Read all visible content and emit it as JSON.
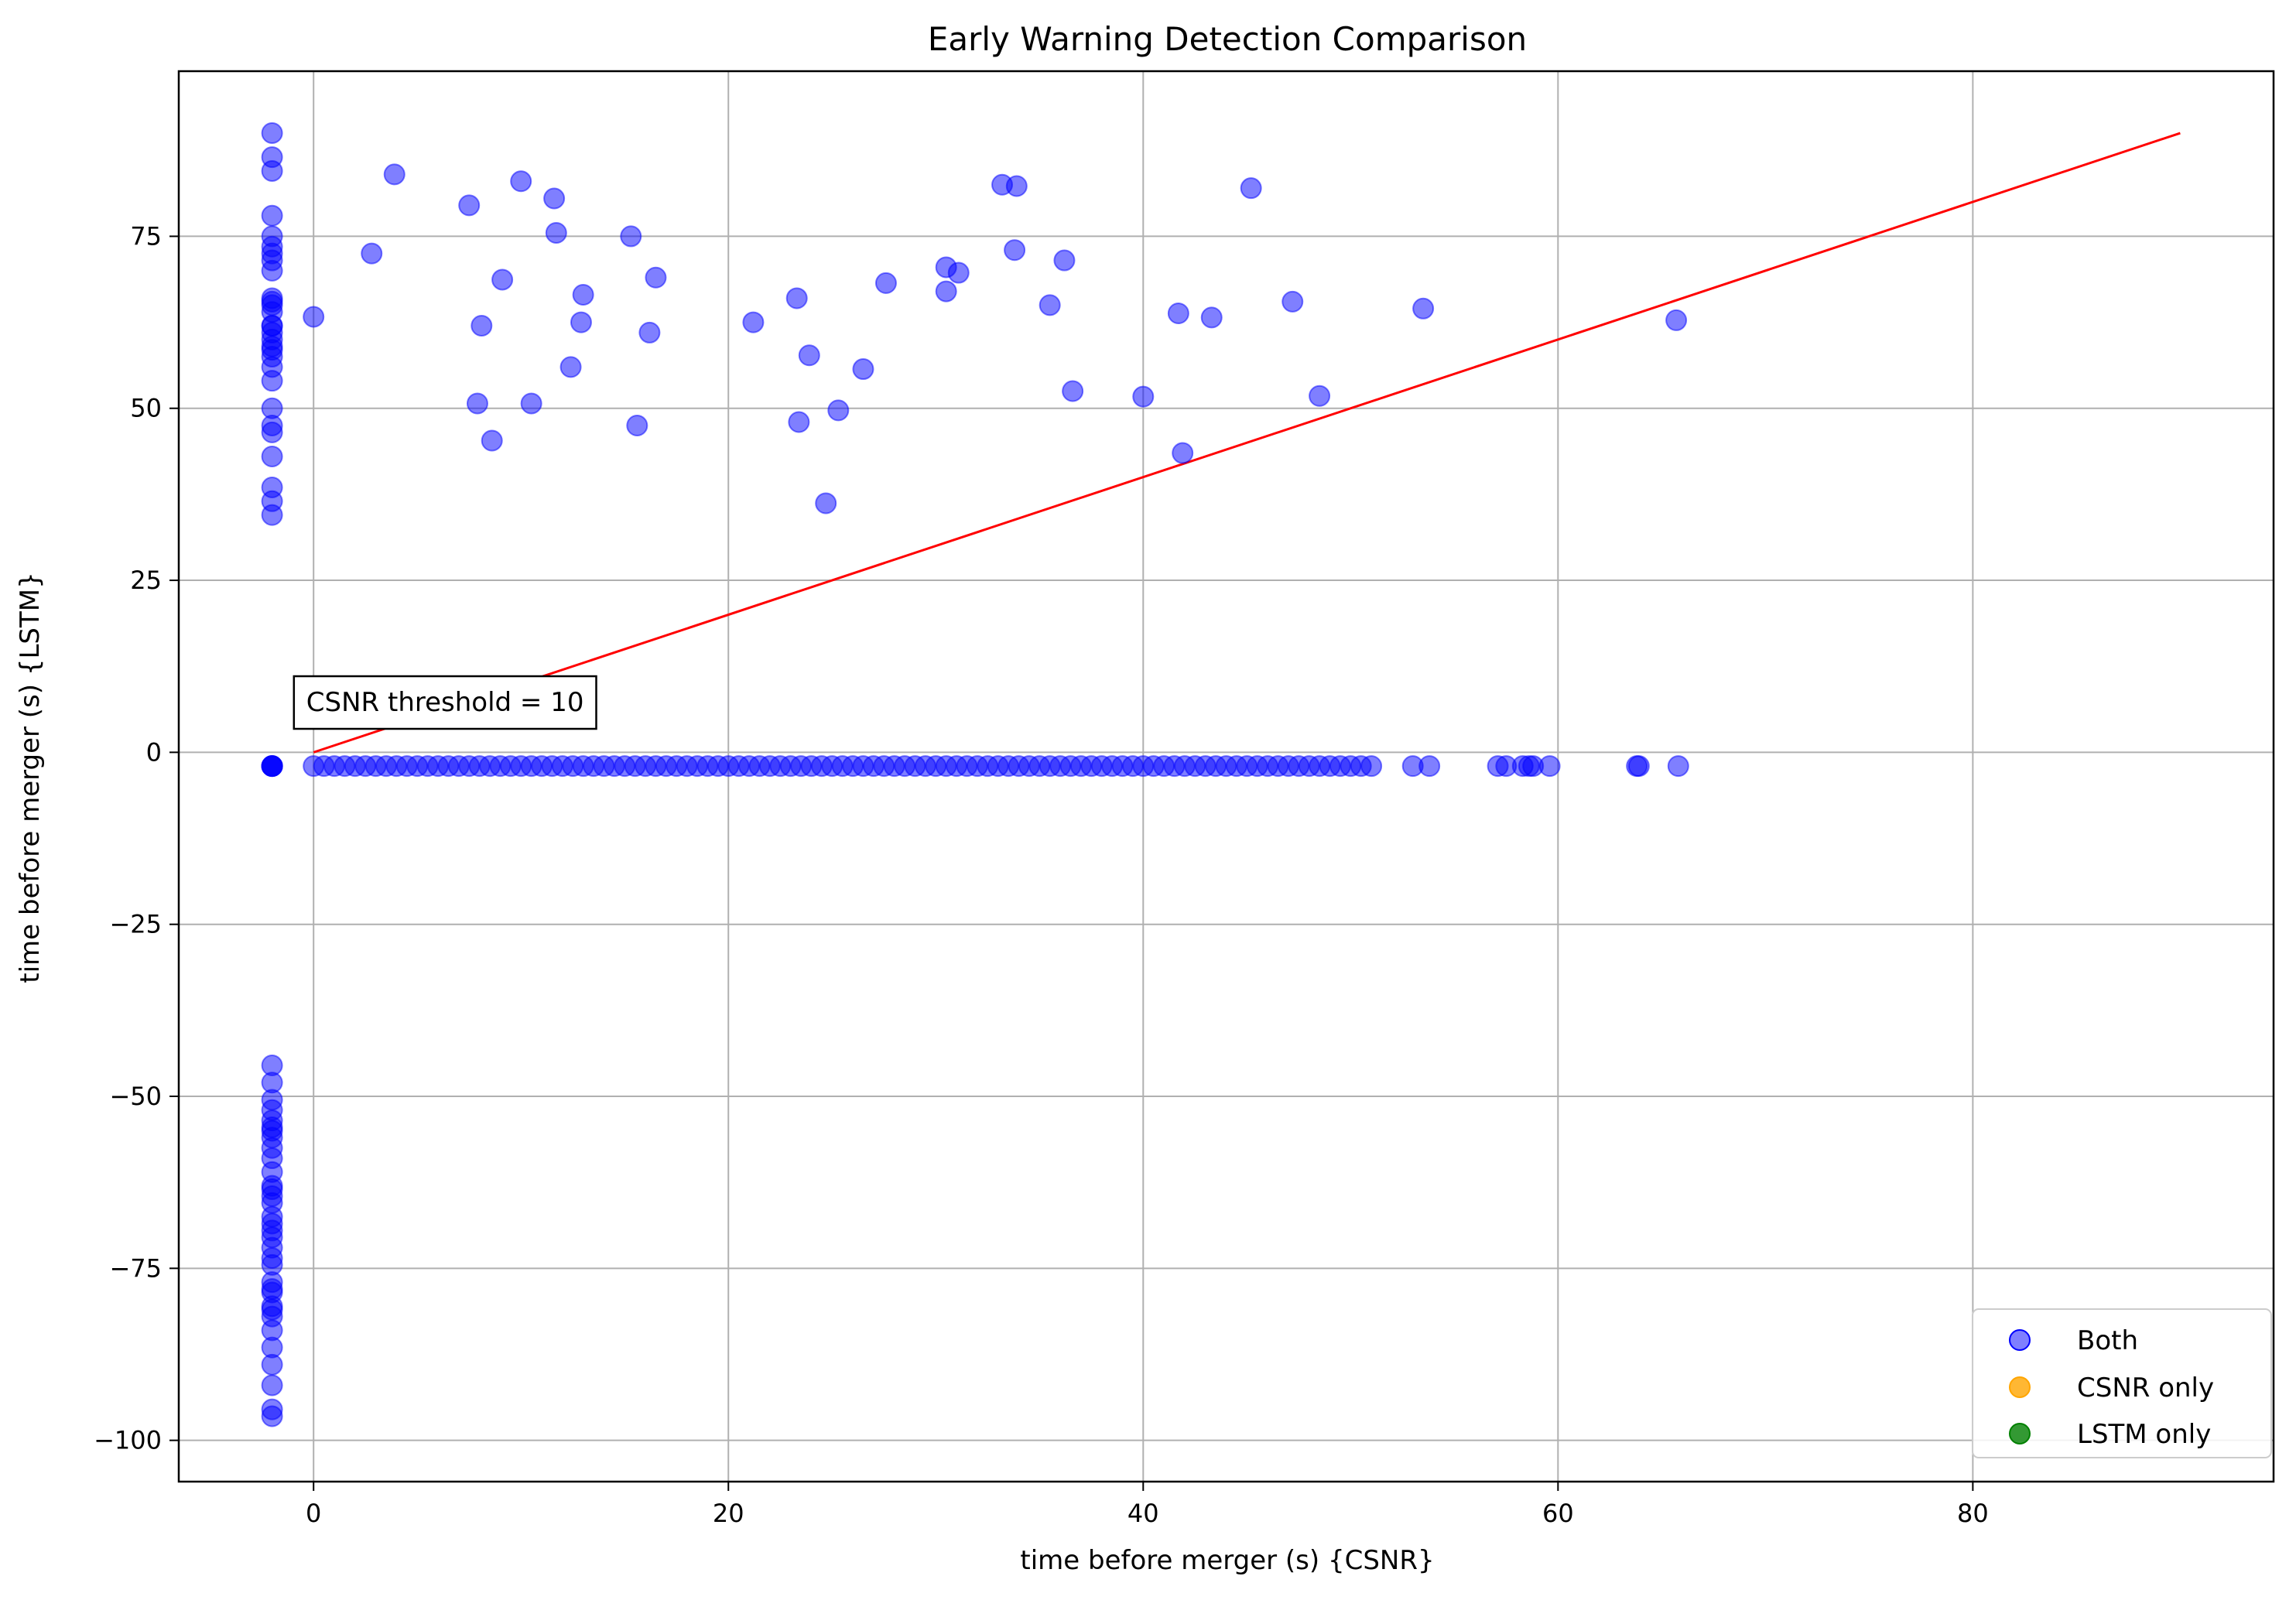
{
  "chart_data": {
    "type": "scatter",
    "title": "Early Warning Detection Comparison",
    "xlabel": "time before merger (s) {CSNR}",
    "ylabel": "time before merger (s) {LSTM}",
    "xlim": [
      -6.5,
      94.5
    ],
    "ylim": [
      -106,
      99
    ],
    "xticks": [
      0,
      20,
      40,
      60,
      80
    ],
    "yticks": [
      -100,
      -75,
      -50,
      -25,
      0,
      25,
      50,
      75
    ],
    "grid": true,
    "legend_position": "bottom-right",
    "annotation": {
      "text": "CSNR threshold = 10",
      "x": -0.5,
      "y": 6
    },
    "reference_line": {
      "x": [
        0,
        90
      ],
      "y": [
        0,
        90
      ],
      "color": "#ff0000"
    },
    "series": [
      {
        "name": "Both",
        "color": "#0000ff",
        "x": [
          -2,
          -2,
          -2,
          -2,
          -2,
          -2,
          -2,
          -2,
          -2,
          -2,
          -2,
          -2,
          -2,
          -2,
          -2,
          -2,
          -2,
          -2,
          -2,
          -2,
          -2,
          -2,
          -2,
          -2,
          -2,
          -2,
          -2,
          -2,
          -2,
          -2,
          -2,
          -2,
          -2,
          -2,
          -2,
          -2,
          -2,
          -2,
          -2,
          -2,
          -2,
          -2,
          -2,
          -2,
          -2,
          -2,
          -2,
          -2,
          -2,
          -2,
          -2,
          -2,
          -2,
          -2,
          -2,
          -2,
          -2,
          -2,
          -2,
          -2,
          -2,
          -2,
          -2,
          -2,
          -2,
          -2,
          -2,
          -2,
          0,
          2.8,
          3.9,
          7.5,
          8.1,
          9.1,
          10,
          11.6,
          11.7,
          12.9,
          13,
          15.3,
          16.5,
          16.2,
          7.9,
          8.6,
          10.5,
          12.4,
          15.6,
          21.2,
          23.3,
          23.9,
          23.4,
          25.3,
          26.5,
          27.6,
          30.5,
          31.1,
          30.5,
          33.2,
          33.9,
          33.8,
          35.5,
          36.2,
          36.6,
          40,
          41.7,
          41.9,
          43.3,
          45.2,
          47.2,
          48.5,
          53.5,
          65.7,
          24.7,
          0,
          0.5,
          1,
          1.5,
          2,
          2.5,
          3,
          3.5,
          4,
          4.5,
          5,
          5.5,
          6,
          6.5,
          7,
          7.5,
          8,
          8.5,
          9,
          9.5,
          10,
          10.5,
          11,
          11.5,
          12,
          12.5,
          13,
          13.5,
          14,
          14.5,
          15,
          15.5,
          16,
          16.5,
          17,
          17.5,
          18,
          18.5,
          19,
          19.5,
          20,
          20.5,
          21,
          21.5,
          22,
          22.5,
          23,
          23.5,
          24,
          24.5,
          25,
          25.5,
          26,
          26.5,
          27,
          27.5,
          28,
          28.5,
          29,
          29.5,
          30,
          30.5,
          31,
          31.5,
          32,
          32.5,
          33,
          33.5,
          34,
          34.5,
          35,
          35.5,
          36,
          36.5,
          37,
          37.5,
          38,
          38.5,
          39,
          39.5,
          40,
          40.5,
          41,
          41.5,
          42,
          42.5,
          43,
          43.5,
          44,
          44.5,
          45,
          45.5,
          46,
          46.5,
          47,
          47.5,
          48,
          48.5,
          49,
          49.5,
          50,
          50.5,
          51,
          53,
          53.8,
          57.1,
          57.5,
          58.3,
          58.6,
          58.8,
          59.6,
          63.8,
          63.9,
          65.8
        ],
        "y": [
          90,
          86.5,
          84.5,
          78,
          75,
          73.5,
          72.5,
          71.5,
          70,
          66,
          65,
          64,
          62,
          60,
          58.5,
          57.5,
          56,
          54,
          50,
          47.5,
          46.5,
          43,
          38.5,
          36.5,
          34.5,
          -2,
          -2,
          -2,
          -2,
          -2,
          -45.5,
          -50.5,
          -52,
          -53.5,
          -54.5,
          -56,
          -57.5,
          -59,
          -61,
          -63,
          -64.5,
          -65.5,
          -67.5,
          -68.5,
          -70.5,
          -72,
          -73.5,
          -74.5,
          -77,
          -78,
          -78.5,
          -80.5,
          -81,
          -82,
          -84,
          -86.5,
          -89,
          -92,
          -95.5,
          -96.5,
          -69.5,
          -63.5,
          -55,
          -48,
          59,
          61,
          62,
          65.5,
          63.3,
          72.5,
          84,
          79.5,
          62,
          68.7,
          83,
          80.5,
          75.5,
          62.5,
          66.5,
          75,
          69,
          61,
          50.7,
          45.3,
          50.7,
          56,
          47.5,
          62.5,
          66,
          57.7,
          48,
          49.7,
          55.7,
          68.2,
          67,
          69.7,
          70.5,
          82.5,
          82.3,
          73,
          65,
          71.5,
          52.5,
          51.7,
          63.8,
          43.5,
          63.2,
          82,
          65.5,
          51.8,
          64.5,
          62.8,
          36.2,
          -2,
          -2,
          -2,
          -2,
          -2,
          -2,
          -2,
          -2,
          -2,
          -2,
          -2,
          -2,
          -2,
          -2,
          -2,
          -2,
          -2,
          -2,
          -2,
          -2,
          -2,
          -2,
          -2,
          -2,
          -2,
          -2,
          -2,
          -2,
          -2,
          -2,
          -2,
          -2,
          -2,
          -2,
          -2,
          -2,
          -2,
          -2,
          -2,
          -2,
          -2,
          -2,
          -2,
          -2,
          -2,
          -2,
          -2,
          -2,
          -2,
          -2,
          -2,
          -2,
          -2,
          -2,
          -2,
          -2,
          -2,
          -2,
          -2,
          -2,
          -2,
          -2,
          -2,
          -2,
          -2,
          -2,
          -2,
          -2,
          -2,
          -2,
          -2,
          -2,
          -2,
          -2,
          -2,
          -2,
          -2,
          -2,
          -2,
          -2,
          -2,
          -2,
          -2,
          -2,
          -2,
          -2,
          -2,
          -2,
          -2,
          -2,
          -2,
          -2,
          -2,
          -2,
          -2,
          -2,
          -2,
          -2,
          -2,
          -2,
          -2,
          -2,
          -2,
          -2,
          -2,
          -2,
          -2,
          -2,
          -2,
          -2,
          -2,
          -2,
          -2,
          -2
        ]
      },
      {
        "name": "CSNR only",
        "color": "#ffa500",
        "x": [],
        "y": []
      },
      {
        "name": "LSTM only",
        "color": "#008000",
        "x": [],
        "y": []
      }
    ]
  }
}
